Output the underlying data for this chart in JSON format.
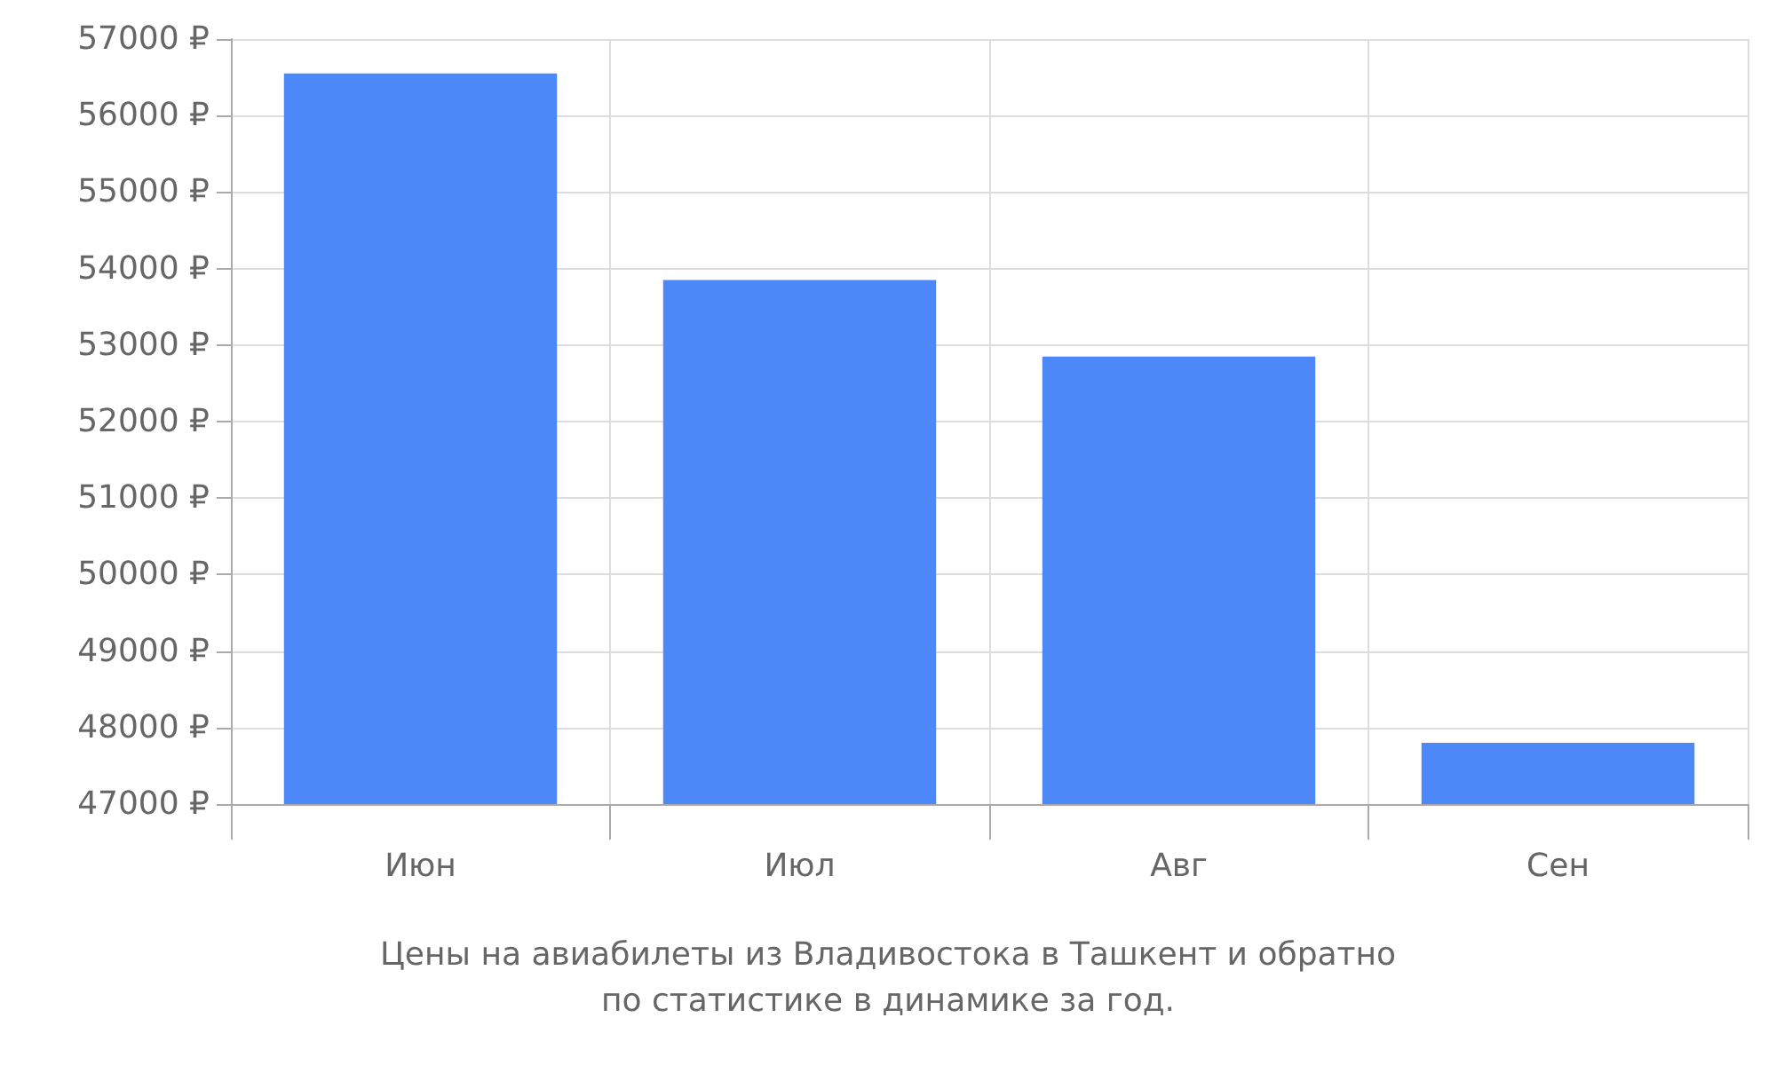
{
  "chart_data": {
    "type": "bar",
    "title": "Цены на авиабилеты из Владивостока в Ташкент и обратно\nпо статистике в динамике за год.",
    "categories": [
      "Июн",
      "Июл",
      "Авг",
      "Сен"
    ],
    "values": [
      56550,
      53850,
      52850,
      47800
    ],
    "color": "#4d88f9",
    "ylim": [
      47000,
      57000
    ],
    "yticks": [
      {
        "value": 47000,
        "label": "47000 ₽"
      },
      {
        "value": 48000,
        "label": "48000 ₽"
      },
      {
        "value": 49000,
        "label": "49000 ₽"
      },
      {
        "value": 50000,
        "label": "50000 ₽"
      },
      {
        "value": 51000,
        "label": "51000 ₽"
      },
      {
        "value": 52000,
        "label": "52000 ₽"
      },
      {
        "value": 53000,
        "label": "53000 ₽"
      },
      {
        "value": 54000,
        "label": "54000 ₽"
      },
      {
        "value": 55000,
        "label": "55000 ₽"
      },
      {
        "value": 56000,
        "label": "56000 ₽"
      },
      {
        "value": 57000,
        "label": "57000 ₽"
      }
    ],
    "grid": true
  }
}
